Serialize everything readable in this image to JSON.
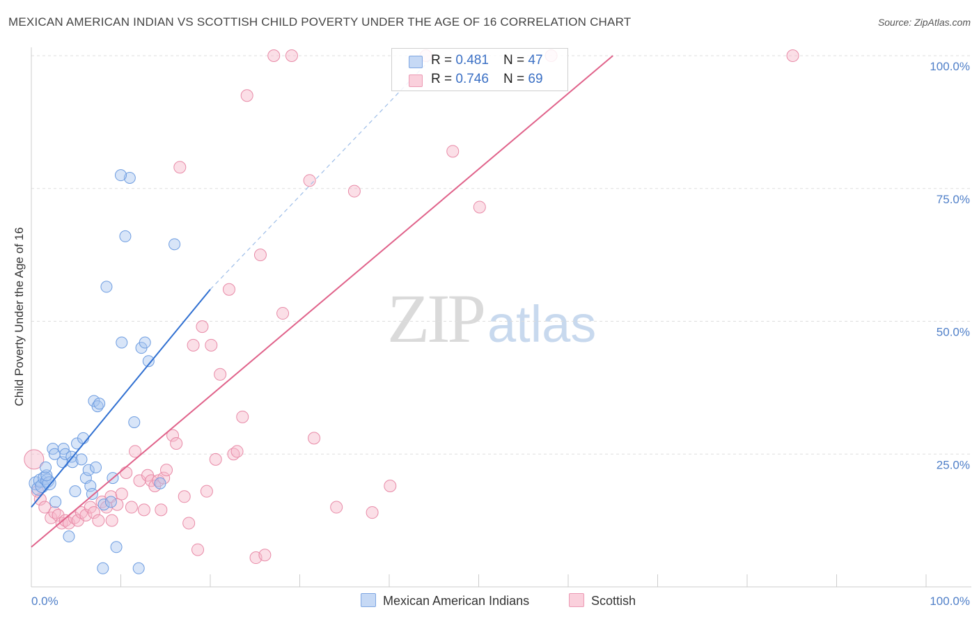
{
  "header": {
    "title": "MEXICAN AMERICAN INDIAN VS SCOTTISH CHILD POVERTY UNDER THE AGE OF 16 CORRELATION CHART",
    "source": "Source: ZipAtlas.com"
  },
  "watermark": {
    "zip": "ZIP",
    "atlas": "atlas"
  },
  "legend": {
    "rows": [
      {
        "r_label": "R = ",
        "r_value": "0.481",
        "n_label": "N = ",
        "n_value": "47"
      },
      {
        "r_label": "R = ",
        "r_value": "0.746",
        "n_label": "N = ",
        "n_value": "69"
      }
    ],
    "series_names": [
      "Mexican American Indians",
      "Scottish"
    ]
  },
  "chart_data": {
    "type": "scatter",
    "title": "MEXICAN AMERICAN INDIAN VS SCOTTISH CHILD POVERTY UNDER THE AGE OF 16 CORRELATION CHART",
    "xlabel": "",
    "ylabel": "Child Poverty Under the Age of 16",
    "xlim": [
      0,
      100
    ],
    "ylim": [
      0,
      100
    ],
    "x_tick_labels": [
      "0.0%",
      "100.0%"
    ],
    "y_ticks": [
      25,
      50,
      75,
      100
    ],
    "y_tick_labels": [
      "25.0%",
      "50.0%",
      "75.0%",
      "100.0%"
    ],
    "grid": true,
    "colors": {
      "blue_fill": "#a8c6ef",
      "blue_stroke": "#6b9be0",
      "blue_line": "#2f6fd1",
      "pink_fill": "#f7b7ca",
      "pink_stroke": "#e88aa7",
      "pink_line": "#e0628a",
      "tick_text": "#4f7fc8",
      "grid": "#dddddd"
    },
    "series": [
      {
        "name": "Mexican American Indians",
        "R": 0.481,
        "N": 47,
        "trend": {
          "x0": 0,
          "y0": 15,
          "x1": 20,
          "y1": 56,
          "dash_to_x": 45,
          "dash_to_y": 100
        },
        "points": [
          [
            0.5,
            19.5
          ],
          [
            0.8,
            18.5
          ],
          [
            1.0,
            20.0
          ],
          [
            1.2,
            19.0
          ],
          [
            1.5,
            20.5
          ],
          [
            1.8,
            20.0
          ],
          [
            2.0,
            19.5
          ],
          [
            1.7,
            21.0
          ],
          [
            1.6,
            22.5
          ],
          [
            2.7,
            16.0
          ],
          [
            2.4,
            26.0
          ],
          [
            2.6,
            25.0
          ],
          [
            3.5,
            23.5
          ],
          [
            3.6,
            26.0
          ],
          [
            3.8,
            25.0
          ],
          [
            4.5,
            24.5
          ],
          [
            4.6,
            23.5
          ],
          [
            4.9,
            18.0
          ],
          [
            5.1,
            27.0
          ],
          [
            5.6,
            24.0
          ],
          [
            5.8,
            28.0
          ],
          [
            6.1,
            20.5
          ],
          [
            6.4,
            22.0
          ],
          [
            6.6,
            19.0
          ],
          [
            7.2,
            22.5
          ],
          [
            7.0,
            35.0
          ],
          [
            7.4,
            34.0
          ],
          [
            7.6,
            34.5
          ],
          [
            8.1,
            15.5
          ],
          [
            8.4,
            56.5
          ],
          [
            8.9,
            16.0
          ],
          [
            9.1,
            20.5
          ],
          [
            9.5,
            7.5
          ],
          [
            10.1,
            46.0
          ],
          [
            10.5,
            66.0
          ],
          [
            11.0,
            77.0
          ],
          [
            10.0,
            77.5
          ],
          [
            11.5,
            31.0
          ],
          [
            12.0,
            3.5
          ],
          [
            12.3,
            45.0
          ],
          [
            12.7,
            46.0
          ],
          [
            13.1,
            42.5
          ],
          [
            14.4,
            19.5
          ],
          [
            16.0,
            64.5
          ],
          [
            6.8,
            17.5
          ],
          [
            4.2,
            9.5
          ],
          [
            8.0,
            3.5
          ]
        ]
      },
      {
        "name": "Scottish",
        "R": 0.746,
        "N": 69,
        "trend": {
          "x0": 0,
          "y0": 7.5,
          "x1": 65,
          "y1": 100
        },
        "points": [
          [
            0.3,
            24.0
          ],
          [
            0.7,
            18.0
          ],
          [
            1.0,
            16.5
          ],
          [
            1.5,
            15.0
          ],
          [
            2.2,
            13.0
          ],
          [
            2.6,
            14.0
          ],
          [
            3.0,
            13.5
          ],
          [
            3.4,
            12.0
          ],
          [
            3.8,
            12.5
          ],
          [
            4.2,
            12.0
          ],
          [
            4.8,
            13.0
          ],
          [
            5.2,
            12.5
          ],
          [
            5.6,
            14.0
          ],
          [
            6.1,
            13.5
          ],
          [
            6.6,
            15.0
          ],
          [
            7.0,
            14.0
          ],
          [
            7.5,
            12.5
          ],
          [
            7.9,
            16.0
          ],
          [
            8.4,
            15.0
          ],
          [
            8.9,
            17.0
          ],
          [
            9.6,
            15.5
          ],
          [
            10.1,
            17.5
          ],
          [
            10.6,
            21.5
          ],
          [
            11.2,
            15.0
          ],
          [
            11.6,
            25.5
          ],
          [
            12.1,
            20.0
          ],
          [
            12.6,
            14.5
          ],
          [
            13.0,
            21.0
          ],
          [
            13.4,
            20.0
          ],
          [
            13.8,
            19.0
          ],
          [
            14.2,
            20.0
          ],
          [
            14.8,
            20.5
          ],
          [
            15.1,
            22.0
          ],
          [
            15.8,
            28.5
          ],
          [
            16.2,
            27.0
          ],
          [
            16.6,
            79.0
          ],
          [
            17.1,
            17.0
          ],
          [
            17.6,
            12.0
          ],
          [
            18.1,
            45.5
          ],
          [
            18.6,
            7.0
          ],
          [
            19.1,
            49.0
          ],
          [
            19.6,
            18.0
          ],
          [
            20.1,
            45.5
          ],
          [
            20.6,
            24.0
          ],
          [
            21.1,
            40.0
          ],
          [
            22.1,
            56.0
          ],
          [
            22.6,
            25.0
          ],
          [
            23.6,
            32.0
          ],
          [
            24.1,
            92.5
          ],
          [
            25.1,
            5.5
          ],
          [
            25.6,
            62.5
          ],
          [
            26.1,
            6.0
          ],
          [
            27.1,
            100.0
          ],
          [
            28.1,
            51.5
          ],
          [
            29.1,
            100.0
          ],
          [
            31.1,
            76.5
          ],
          [
            31.6,
            28.0
          ],
          [
            34.1,
            15.0
          ],
          [
            36.1,
            74.5
          ],
          [
            38.1,
            14.0
          ],
          [
            40.1,
            19.0
          ],
          [
            44.1,
            100.0
          ],
          [
            47.1,
            82.0
          ],
          [
            50.1,
            71.5
          ],
          [
            58.1,
            100.0
          ],
          [
            85.1,
            100.0
          ],
          [
            14.5,
            14.5
          ],
          [
            9.0,
            12.5
          ],
          [
            23.0,
            25.5
          ]
        ]
      }
    ]
  }
}
